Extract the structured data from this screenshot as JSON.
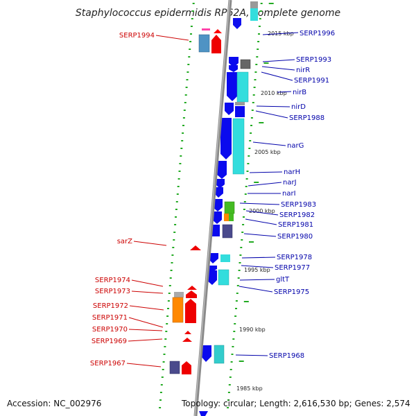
{
  "title": "Staphylococcus epidermidis RP62A, complete genome",
  "footer": {
    "accession": "Accession: NC_002976",
    "topology": "Topology: circular; Length: 2,616,530 bp; Genes: 2,574"
  },
  "colors": {
    "backbone": "#8a8a8a",
    "dots": "#22aa22",
    "forward_arrow": "#ff0000",
    "reverse_arrow": "#0000ee",
    "cyan_feature": "#33dddd",
    "left_label": "#cc0000",
    "right_label": "#0000aa"
  },
  "scale_ticks": [
    "2015 kbp",
    "2010 kbp",
    "2005 kbp",
    "2000 kbp",
    "1995 kbp",
    "1990 kbp",
    "1985 kbp"
  ],
  "left_labels": [
    "SERP1994",
    "sarZ",
    "SERP1974",
    "SERP1973",
    "SERP1972",
    "SERP1971",
    "SERP1970",
    "SERP1969",
    "SERP1967"
  ],
  "right_labels": [
    "SERP1996",
    "SERP1993",
    "nirR",
    "SERP1991",
    "nirB",
    "nirD",
    "SERP1988",
    "narG",
    "narH",
    "narJ",
    "narI",
    "SERP1983",
    "SERP1982",
    "SERP1981",
    "SERP1980",
    "SERP1978",
    "SERP1977",
    "gltT",
    "SERP1975",
    "SERP1968"
  ]
}
